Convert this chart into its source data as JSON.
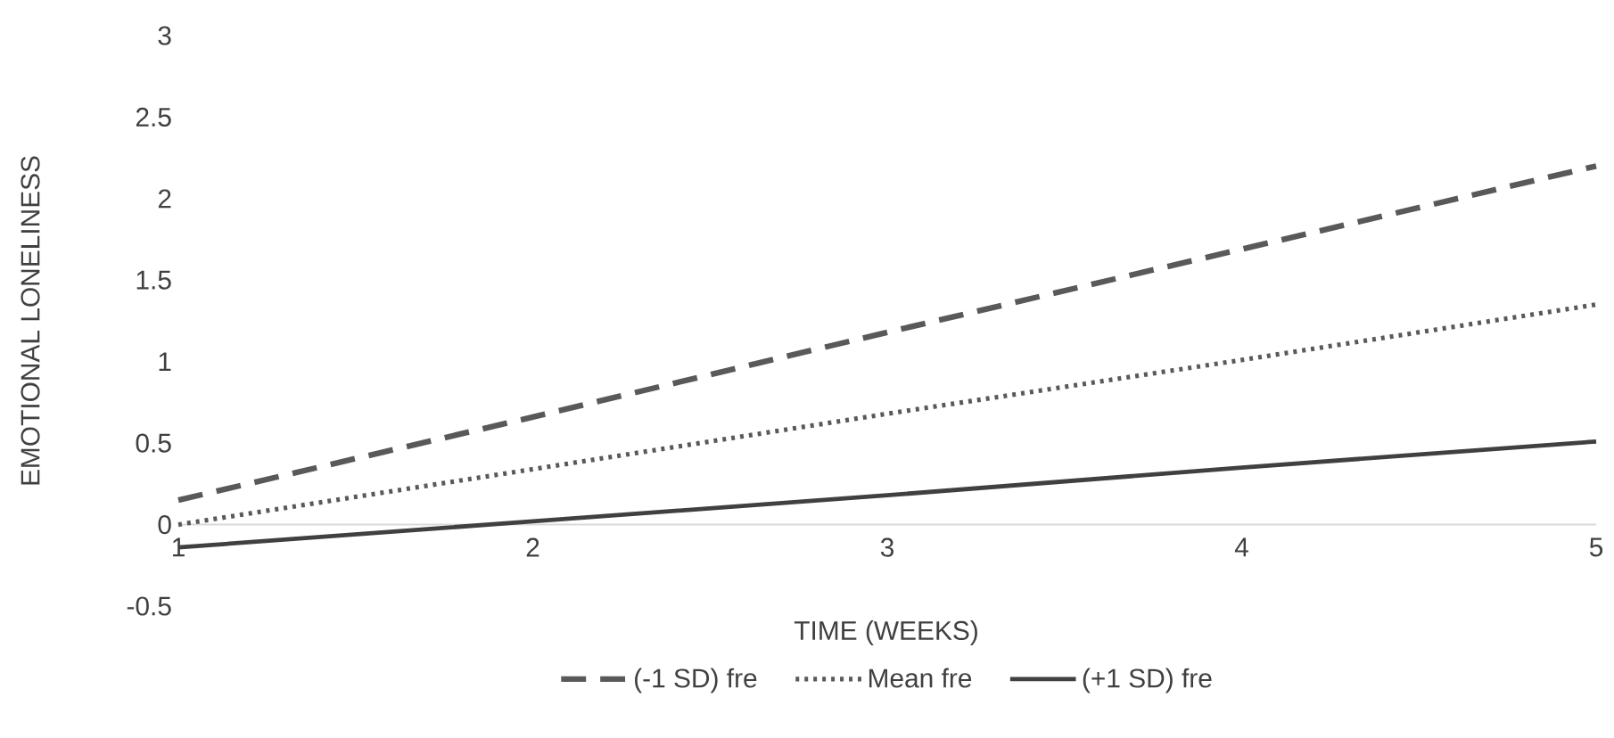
{
  "chart_data": {
    "type": "line",
    "xlabel": "TIME (WEEKS)",
    "ylabel": "EMOTIONAL LONELINESS",
    "x": [
      1,
      2,
      3,
      4,
      5
    ],
    "series": [
      {
        "name": "(-1 SD) fre",
        "color": "#595959",
        "line_style": "dashed",
        "values": [
          0.15,
          0.66,
          1.18,
          1.69,
          2.2
        ]
      },
      {
        "name": "Mean fre",
        "color": "#595959",
        "line_style": "dotted",
        "values": [
          0,
          0.34,
          0.68,
          1.01,
          1.35
        ]
      },
      {
        "name": "(+1 SD) fre",
        "color": "#404040",
        "line_style": "solid",
        "values": [
          -0.14,
          0.02,
          0.18,
          0.35,
          0.51
        ]
      }
    ],
    "xlim": [
      1,
      5
    ],
    "xticks": [
      1,
      2,
      3,
      4,
      5
    ],
    "ylim": [
      -0.5,
      3
    ],
    "yticks": [
      -0.5,
      0,
      0.5,
      1,
      1.5,
      2,
      2.5,
      3
    ],
    "grid": false,
    "legend": "bottom"
  }
}
